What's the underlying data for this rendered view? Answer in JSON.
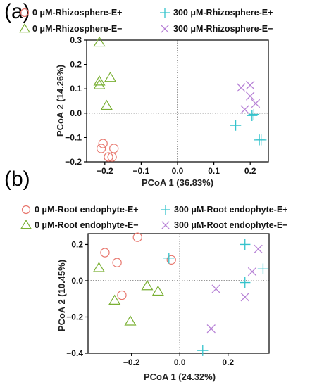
{
  "chart_data": [
    {
      "panel": "(a)",
      "type": "scatter",
      "xlabel": "PCoA 1 (36.83%)",
      "ylabel": "PCoA 2 (14.26%)",
      "xlim": [
        -0.25,
        0.25
      ],
      "ylim": [
        -0.2,
        0.3
      ],
      "xticks": [
        -0.2,
        -0.1,
        0.0,
        0.1,
        0.2
      ],
      "yticks": [
        -0.2,
        -0.1,
        0.0,
        0.1,
        0.2,
        0.3
      ],
      "xtick_labels": [
        "−0.2",
        "−0.1",
        "0.0",
        "0.1",
        "0.2"
      ],
      "ytick_labels": [
        "−0.2",
        "−0.1",
        "0.0",
        "0.1",
        "0.2",
        "0.3"
      ],
      "reference_lines": {
        "x": 0,
        "y": 0,
        "style": "dotted"
      },
      "legend_placement": "top",
      "series": [
        {
          "name": "0 μM-Rhizosphere-E+",
          "marker": "circle",
          "color": "#e8776e",
          "points": [
            [
              -0.21,
              -0.145
            ],
            [
              -0.205,
              -0.125
            ],
            [
              -0.19,
              -0.18
            ],
            [
              -0.18,
              -0.18
            ],
            [
              -0.175,
              -0.145
            ]
          ]
        },
        {
          "name": "0 μM-Rhizosphere-E−",
          "marker": "triangle",
          "color": "#7ab034",
          "points": [
            [
              -0.215,
              0.29
            ],
            [
              -0.215,
              0.13
            ],
            [
              -0.215,
              0.115
            ],
            [
              -0.185,
              0.145
            ],
            [
              -0.195,
              0.03
            ]
          ]
        },
        {
          "name": "300 μM-Rhizosphere-E+",
          "marker": "plus",
          "color": "#34c3cc",
          "points": [
            [
              0.16,
              -0.05
            ],
            [
              0.205,
              -0.01
            ],
            [
              0.21,
              -0.005
            ],
            [
              0.225,
              -0.11
            ],
            [
              0.23,
              -0.11
            ]
          ]
        },
        {
          "name": "300 μM-Rhizosphere-E−",
          "marker": "cross",
          "color": "#b782d6",
          "points": [
            [
              0.175,
              0.105
            ],
            [
              0.2,
              0.115
            ],
            [
              0.2,
              0.07
            ],
            [
              0.215,
              0.04
            ],
            [
              0.185,
              0.015
            ]
          ]
        }
      ]
    },
    {
      "panel": "(b)",
      "type": "scatter",
      "xlabel": "PCoA 1 (24.32%)",
      "ylabel": "PCoA 2 (10.45%)",
      "xlim": [
        -0.38,
        0.37
      ],
      "ylim": [
        -0.4,
        0.26
      ],
      "xticks": [
        -0.2,
        0.0,
        0.2
      ],
      "yticks": [
        -0.4,
        -0.2,
        0.0,
        0.2
      ],
      "xtick_labels": [
        "−0.2",
        "0.0",
        "0.2"
      ],
      "ytick_labels": [
        "−0.4",
        "−0.2",
        "0.0",
        "0.2"
      ],
      "reference_lines": {
        "x": 0,
        "y": 0,
        "style": "dotted"
      },
      "legend_placement": "top",
      "series": [
        {
          "name": "0 μM-Root endophyte-E+",
          "marker": "circle",
          "color": "#e8776e",
          "points": [
            [
              -0.31,
              0.155
            ],
            [
              -0.26,
              0.1
            ],
            [
              -0.175,
              0.24
            ],
            [
              -0.035,
              0.115
            ],
            [
              -0.24,
              -0.08
            ]
          ]
        },
        {
          "name": "0 μM-Root endophyte-E−",
          "marker": "triangle",
          "color": "#7ab034",
          "points": [
            [
              -0.335,
              0.07
            ],
            [
              -0.27,
              -0.11
            ],
            [
              -0.205,
              -0.225
            ],
            [
              -0.135,
              -0.03
            ],
            [
              -0.09,
              -0.06
            ]
          ]
        },
        {
          "name": "300 μM-Root endophyte-E+",
          "marker": "plus",
          "color": "#34c3cc",
          "points": [
            [
              -0.045,
              0.125
            ],
            [
              0.27,
              0.2
            ],
            [
              0.345,
              0.065
            ],
            [
              0.27,
              -0.01
            ],
            [
              0.095,
              -0.385
            ]
          ]
        },
        {
          "name": "300 μM-Root endophyte-E−",
          "marker": "cross",
          "color": "#b782d6",
          "points": [
            [
              0.325,
              0.175
            ],
            [
              0.3,
              0.05
            ],
            [
              0.27,
              -0.09
            ],
            [
              0.15,
              -0.045
            ],
            [
              0.13,
              -0.265
            ]
          ]
        }
      ]
    }
  ]
}
